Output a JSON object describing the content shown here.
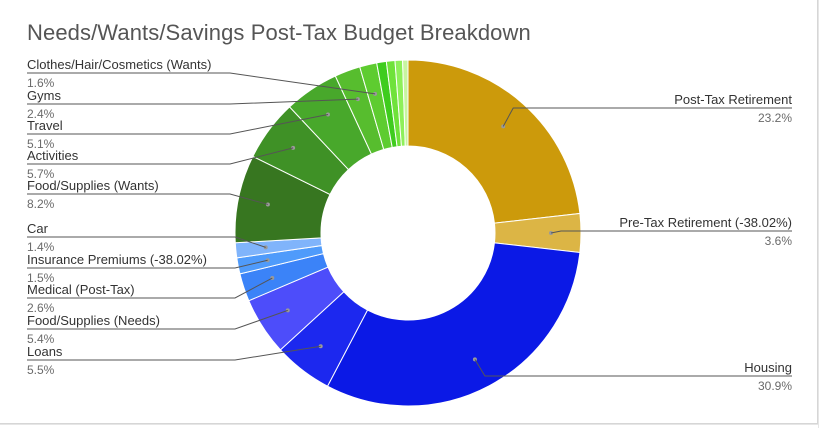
{
  "chart_data": {
    "type": "pie",
    "donut": true,
    "title": "Needs/Wants/Savings Post-Tax Budget Breakdown",
    "slices": [
      {
        "label": "Post-Tax Retirement",
        "pct_label": "23.2%",
        "value": 23.2,
        "color": "#cc9a0b",
        "side": "right"
      },
      {
        "label": "Pre-Tax Retirement (-38.02%)",
        "pct_label": "3.6%",
        "value": 3.6,
        "color": "#dcb545",
        "side": "right"
      },
      {
        "label": "Housing",
        "pct_label": "30.9%",
        "value": 30.9,
        "color": "#0b19e6",
        "side": "right"
      },
      {
        "label": "Loans",
        "pct_label": "5.5%",
        "value": 5.5,
        "color": "#1c28ef",
        "side": "left"
      },
      {
        "label": "Food/Supplies (Needs)",
        "pct_label": "5.4%",
        "value": 5.4,
        "color": "#4d4dfa",
        "side": "left"
      },
      {
        "label": "Medical (Post-Tax)",
        "pct_label": "2.6%",
        "value": 2.6,
        "color": "#3b83f8",
        "side": "left"
      },
      {
        "label": "Insurance Premiums (-38.02%)",
        "pct_label": "1.5%",
        "value": 1.5,
        "color": "#4f9bfb",
        "side": "left"
      },
      {
        "label": "Car",
        "pct_label": "1.4%",
        "value": 1.4,
        "color": "#80b4fb",
        "side": "left"
      },
      {
        "label": "Food/Supplies (Wants)",
        "pct_label": "8.2%",
        "value": 8.2,
        "color": "#377620",
        "side": "left"
      },
      {
        "label": "Activities",
        "pct_label": "5.7%",
        "value": 5.7,
        "color": "#3f9126",
        "side": "left"
      },
      {
        "label": "Travel",
        "pct_label": "5.1%",
        "value": 5.1,
        "color": "#48a82b",
        "side": "left"
      },
      {
        "label": "Gyms",
        "pct_label": "2.4%",
        "value": 2.4,
        "color": "#57bd2e",
        "side": "left"
      },
      {
        "label": "Clothes/Hair/Cosmetics (Wants)",
        "pct_label": "1.6%",
        "value": 1.6,
        "color": "#5ecc30",
        "side": "left"
      },
      {
        "label": "",
        "pct_label": "",
        "value": 0.9,
        "color": "#3fcc1e",
        "side": "none"
      },
      {
        "label": "",
        "pct_label": "",
        "value": 0.8,
        "color": "#6fe23a",
        "side": "none"
      },
      {
        "label": "",
        "pct_label": "",
        "value": 0.7,
        "color": "#8ef05a",
        "side": "none"
      },
      {
        "label": "",
        "pct_label": "",
        "value": 0.5,
        "color": "#c8f5a0",
        "side": "none"
      }
    ],
    "legend": "labels-on-leader-lines"
  }
}
